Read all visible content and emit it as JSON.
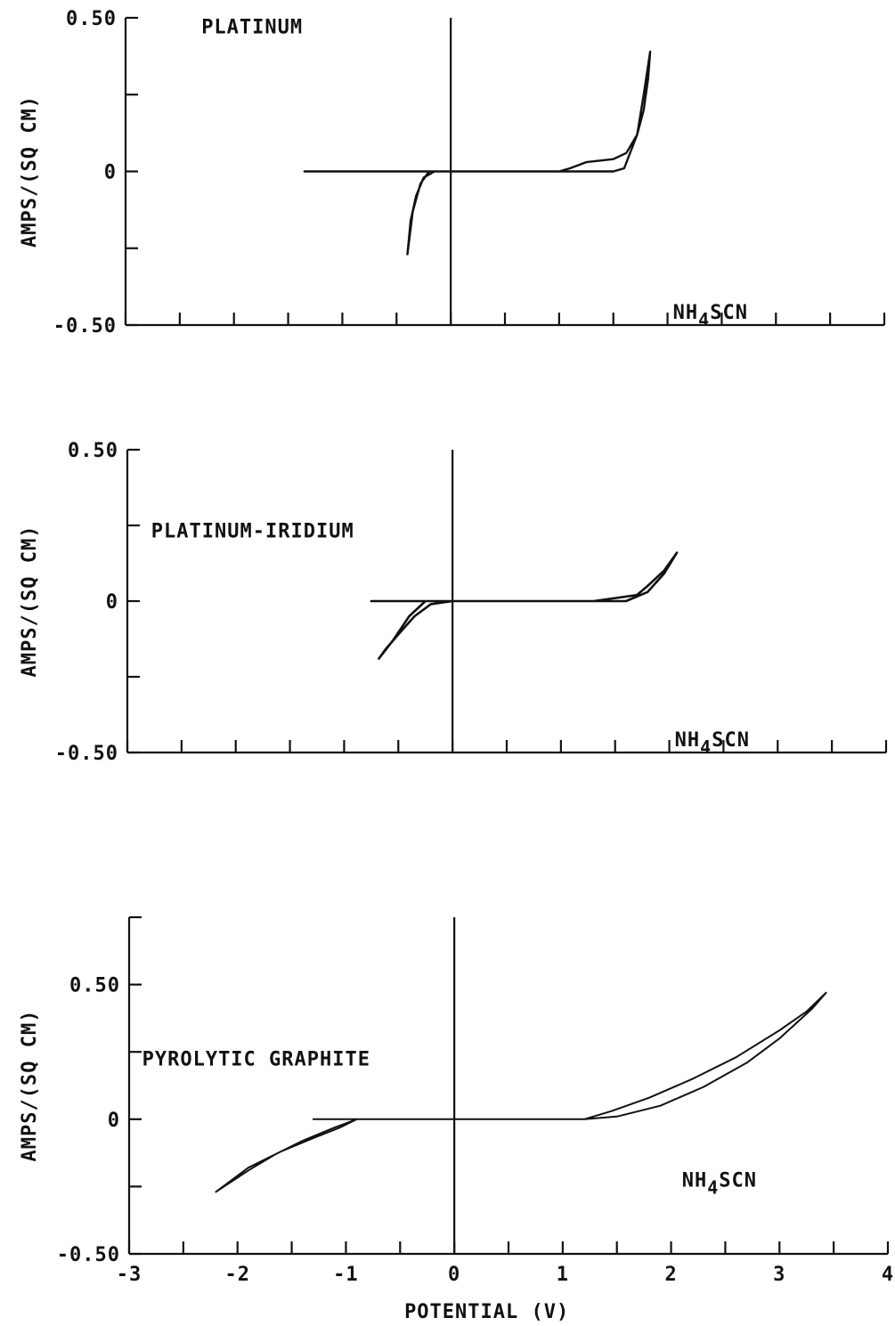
{
  "chart_data": [
    {
      "type": "line",
      "title": "",
      "xlabel": "",
      "ylabel": "AMPS/(SQ CM)",
      "xlim": [
        -3,
        4
      ],
      "ylim": [
        -0.5,
        0.5
      ],
      "y_tick_labels": [
        "0.50",
        "0",
        "-0.50"
      ],
      "y_tick_values": [
        0.5,
        0,
        -0.5
      ],
      "x_minor_tick_step": 0.5,
      "y_minor_tick_step": 0.25,
      "annotations": [
        {
          "text": "PLATINUM",
          "x": -2.3,
          "y": 0.45
        },
        {
          "text": "NH₄SCN",
          "x": 2.05,
          "y": -0.48
        }
      ],
      "series": [
        {
          "values": [
            [
              -1.35,
              0.0
            ],
            [
              -0.2,
              0.0
            ],
            [
              0.0,
              0.0
            ],
            [
              1.0,
              0.0
            ],
            [
              1.1,
              0.01
            ],
            [
              1.25,
              0.03
            ],
            [
              1.5,
              0.04
            ],
            [
              1.62,
              0.06
            ],
            [
              1.72,
              0.12
            ],
            [
              1.78,
              0.2
            ],
            [
              1.82,
              0.3
            ],
            [
              1.84,
              0.39
            ],
            [
              1.78,
              0.25
            ],
            [
              1.72,
              0.12
            ],
            [
              1.6,
              0.01
            ],
            [
              1.5,
              0.0
            ],
            [
              0.0,
              0.0
            ],
            [
              -0.15,
              0.0
            ],
            [
              -0.25,
              -0.02
            ],
            [
              -0.32,
              -0.08
            ],
            [
              -0.37,
              -0.16
            ],
            [
              -0.4,
              -0.27
            ],
            [
              -0.35,
              -0.13
            ],
            [
              -0.28,
              -0.04
            ],
            [
              -0.2,
              0.0
            ],
            [
              0.0,
              0.0
            ]
          ]
        }
      ]
    },
    {
      "type": "line",
      "title": "",
      "xlabel": "",
      "ylabel": "AMPS/(SQ CM)",
      "xlim": [
        -3,
        4
      ],
      "ylim": [
        -0.5,
        0.5
      ],
      "y_tick_labels": [
        "0.50",
        "0",
        "-0.50"
      ],
      "y_tick_values": [
        0.5,
        0,
        -0.5
      ],
      "x_minor_tick_step": 0.5,
      "y_minor_tick_step": 0.25,
      "annotations": [
        {
          "text": "PLATINUM-IRIDIUM",
          "x": -2.78,
          "y": 0.21
        },
        {
          "text": "NH₄SCN",
          "x": 2.05,
          "y": -0.48
        }
      ],
      "series": [
        {
          "values": [
            [
              -0.75,
              0.0
            ],
            [
              -0.2,
              0.0
            ],
            [
              0.0,
              0.0
            ],
            [
              1.3,
              0.0
            ],
            [
              1.5,
              0.01
            ],
            [
              1.7,
              0.02
            ],
            [
              1.8,
              0.05
            ],
            [
              1.95,
              0.1
            ],
            [
              2.07,
              0.16
            ],
            [
              1.95,
              0.09
            ],
            [
              1.8,
              0.03
            ],
            [
              1.6,
              0.0
            ],
            [
              0.0,
              0.0
            ],
            [
              -0.2,
              -0.01
            ],
            [
              -0.35,
              -0.05
            ],
            [
              -0.5,
              -0.11
            ],
            [
              -0.62,
              -0.16
            ],
            [
              -0.68,
              -0.19
            ],
            [
              -0.55,
              -0.13
            ],
            [
              -0.4,
              -0.05
            ],
            [
              -0.25,
              0.0
            ],
            [
              0.0,
              0.0
            ]
          ]
        }
      ]
    },
    {
      "type": "line",
      "title": "",
      "xlabel": "POTENTIAL (V)",
      "ylabel": "AMPS/(SQ CM)",
      "xlim": [
        -3,
        4
      ],
      "ylim": [
        -0.5,
        0.75
      ],
      "x_tick_labels": [
        "-3",
        "-2",
        "-1",
        "0",
        "1",
        "2",
        "3",
        "4"
      ],
      "x_tick_values": [
        -3,
        -2,
        -1,
        0,
        1,
        2,
        3,
        4
      ],
      "y_tick_labels": [
        "0.50",
        "0",
        "-0.50"
      ],
      "y_tick_values": [
        0.5,
        0,
        -0.5
      ],
      "x_minor_tick_step": 0.5,
      "y_minor_tick_step": 0.25,
      "annotations": [
        {
          "text": "PYROLYTIC GRAPHITE",
          "x": -2.88,
          "y": 0.2
        },
        {
          "text": "NH₄SCN",
          "x": 2.1,
          "y": -0.25
        }
      ],
      "series": [
        {
          "values": [
            [
              -1.3,
              0.0
            ],
            [
              -0.85,
              0.0
            ],
            [
              0.0,
              0.0
            ],
            [
              1.2,
              0.0
            ],
            [
              1.45,
              0.03
            ],
            [
              1.8,
              0.08
            ],
            [
              2.2,
              0.15
            ],
            [
              2.6,
              0.23
            ],
            [
              3.0,
              0.33
            ],
            [
              3.25,
              0.4
            ],
            [
              3.43,
              0.47
            ],
            [
              3.3,
              0.41
            ],
            [
              3.0,
              0.3
            ],
            [
              2.7,
              0.21
            ],
            [
              2.3,
              0.12
            ],
            [
              1.9,
              0.05
            ],
            [
              1.5,
              0.01
            ],
            [
              1.2,
              0.0
            ],
            [
              0.0,
              0.0
            ],
            [
              -0.9,
              0.0
            ],
            [
              -1.1,
              -0.03
            ],
            [
              -1.4,
              -0.08
            ],
            [
              -1.65,
              -0.13
            ],
            [
              -1.9,
              -0.19
            ],
            [
              -2.2,
              -0.27
            ],
            [
              -1.9,
              -0.18
            ],
            [
              -1.6,
              -0.12
            ],
            [
              -1.3,
              -0.07
            ],
            [
              -1.05,
              -0.03
            ],
            [
              -0.9,
              0.0
            ]
          ]
        }
      ]
    }
  ]
}
